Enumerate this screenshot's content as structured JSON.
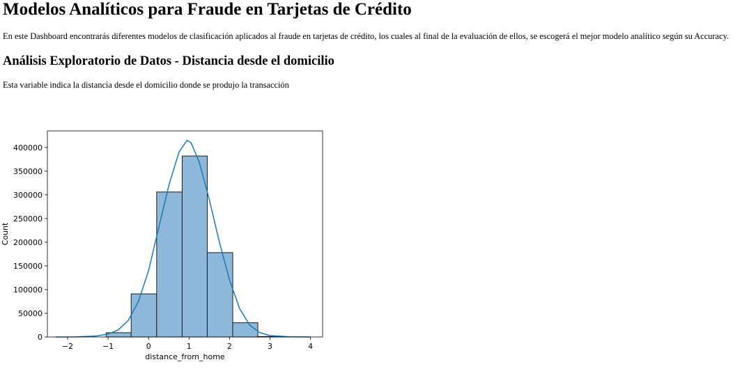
{
  "page": {
    "title": "Modelos Analíticos para Fraude en Tarjetas de Crédito",
    "intro": "En este Dashboard encontrarás diferentes modelos de clasificación aplicados al fraude en tarjetas de crédito, los cuales al final de la evaluación de ellos, se escogerá el mejor modelo analítico según su Accuracy.",
    "section_title": "Análisis Exploratorio de Datos - Distancia desde el domicilio",
    "section_description": "Esta variable indica la distancia desde el domicilio donde se produjo la transacción"
  },
  "chart_data": {
    "type": "bar",
    "title": "",
    "xlabel": "distance_from_home",
    "ylabel": "Count",
    "xlim": [
      -2.5,
      4.3
    ],
    "ylim": [
      0,
      435000
    ],
    "xticks": [
      -2,
      -1,
      0,
      1,
      2,
      3,
      4
    ],
    "yticks": [
      0,
      50000,
      100000,
      150000,
      200000,
      250000,
      300000,
      350000,
      400000
    ],
    "bin_edges": [
      -1.05,
      -0.43,
      0.2,
      0.83,
      1.45,
      2.08,
      2.7,
      3.33,
      3.95
    ],
    "counts": [
      9000,
      91000,
      306000,
      382000,
      178000,
      30000,
      1000,
      200
    ],
    "bar_color": "#8db8da",
    "bar_edge": "#1a1a1a",
    "kde_color": "#1f77b4",
    "kde": {
      "x": [
        -2.3,
        -1.8,
        -1.3,
        -1.0,
        -0.75,
        -0.5,
        -0.25,
        0.0,
        0.25,
        0.5,
        0.75,
        0.95,
        1.05,
        1.25,
        1.5,
        1.75,
        2.0,
        2.25,
        2.5,
        2.75,
        3.0,
        3.5,
        4.0
      ],
      "y": [
        0,
        200,
        2000,
        6000,
        15000,
        35000,
        75000,
        140000,
        230000,
        320000,
        390000,
        415000,
        410000,
        370000,
        290000,
        200000,
        120000,
        60000,
        25000,
        9000,
        3000,
        300,
        0
      ]
    }
  }
}
